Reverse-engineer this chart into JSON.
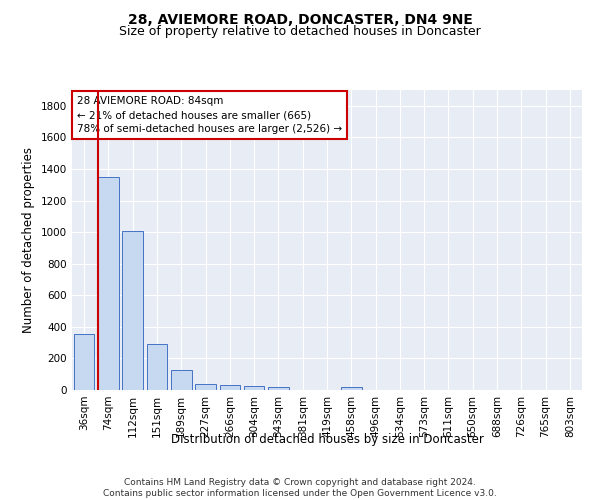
{
  "title": "28, AVIEMORE ROAD, DONCASTER, DN4 9NE",
  "subtitle": "Size of property relative to detached houses in Doncaster",
  "xlabel": "Distribution of detached houses by size in Doncaster",
  "ylabel": "Number of detached properties",
  "footer_line1": "Contains HM Land Registry data © Crown copyright and database right 2024.",
  "footer_line2": "Contains public sector information licensed under the Open Government Licence v3.0.",
  "bin_labels": [
    "36sqm",
    "74sqm",
    "112sqm",
    "151sqm",
    "189sqm",
    "227sqm",
    "266sqm",
    "304sqm",
    "343sqm",
    "381sqm",
    "419sqm",
    "458sqm",
    "496sqm",
    "534sqm",
    "573sqm",
    "611sqm",
    "650sqm",
    "688sqm",
    "726sqm",
    "765sqm",
    "803sqm"
  ],
  "bar_values": [
    355,
    1350,
    1005,
    290,
    125,
    40,
    33,
    25,
    20,
    0,
    0,
    20,
    0,
    0,
    0,
    0,
    0,
    0,
    0,
    0,
    0
  ],
  "bar_color": "#c6d9f0",
  "bar_edgecolor": "#4472c4",
  "property_sqm": 84,
  "annotation_line1": "28 AVIEMORE ROAD: 84sqm",
  "annotation_line2": "← 21% of detached houses are smaller (665)",
  "annotation_line3": "78% of semi-detached houses are larger (2,526) →",
  "annotation_box_color": "#cc0000",
  "vline_color": "#cc0000",
  "ylim": [
    0,
    1900
  ],
  "yticks": [
    0,
    200,
    400,
    600,
    800,
    1000,
    1200,
    1400,
    1600,
    1800
  ],
  "background_color": "#e8edf5",
  "grid_color": "#ffffff",
  "title_fontsize": 10,
  "subtitle_fontsize": 9,
  "xlabel_fontsize": 8.5,
  "ylabel_fontsize": 8.5,
  "tick_fontsize": 7.5,
  "annotation_fontsize": 7.5,
  "footer_fontsize": 6.5
}
